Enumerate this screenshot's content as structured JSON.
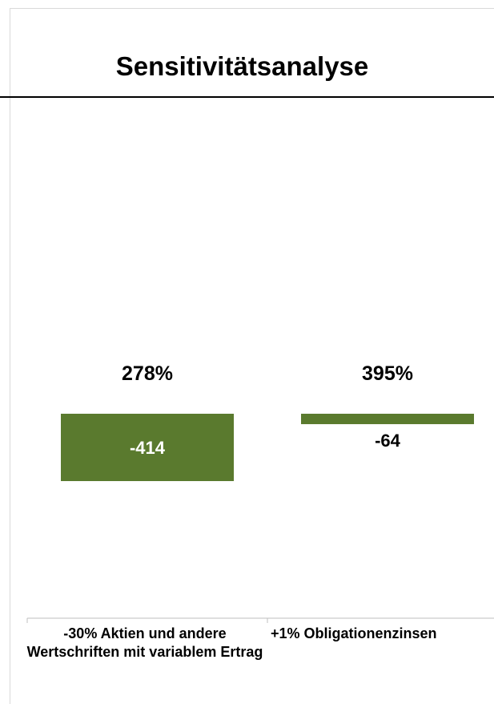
{
  "title": "Sensitivitätsanalyse",
  "chart_data": {
    "type": "bar",
    "categories": [
      "-30% Aktien und andere Wertschriften mit variablem Ertrag",
      "+1% Obligationenzinsen"
    ],
    "values": [
      -414,
      -64
    ],
    "value_labels": [
      "-414",
      "-64"
    ],
    "top_labels": [
      "278%",
      "395%"
    ],
    "title": "Sensitivitätsanalyse",
    "xlabel": "",
    "ylabel": "",
    "ylim": [
      -450,
      0
    ],
    "grid": false,
    "legend": "none",
    "colors": {
      "bar": "#5a7a2e",
      "inside_label": "#ffffff",
      "outside_label": "#000000"
    }
  }
}
